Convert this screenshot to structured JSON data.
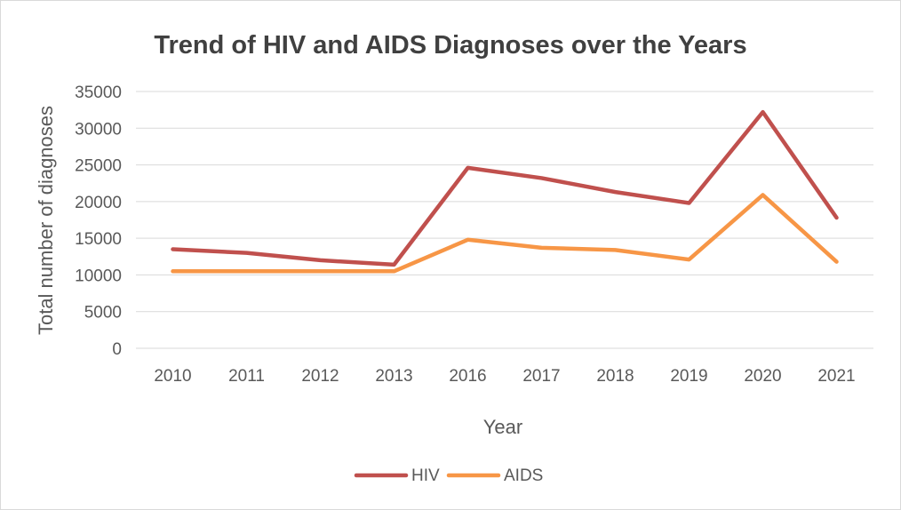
{
  "chart_data": {
    "type": "line",
    "title": "Trend of HIV and AIDS Diagnoses over the Years",
    "xlabel": "Year",
    "ylabel": "Total number of diagnoses",
    "categories": [
      "2010",
      "2011",
      "2012",
      "2013",
      "2016",
      "2017",
      "2018",
      "2019",
      "2020",
      "2021"
    ],
    "ylim": [
      0,
      35000
    ],
    "yticks": [
      0,
      5000,
      10000,
      15000,
      20000,
      25000,
      30000,
      35000
    ],
    "grid": true,
    "legend_position": "bottom",
    "series": [
      {
        "name": "HIV",
        "color": "#c0504d",
        "values": [
          13500,
          13000,
          12000,
          11400,
          24600,
          23200,
          21300,
          19800,
          32200,
          17800
        ]
      },
      {
        "name": "AIDS",
        "color": "#f79646",
        "values": [
          10500,
          10500,
          10500,
          10500,
          14800,
          13700,
          13400,
          12100,
          20900,
          11800
        ]
      }
    ]
  }
}
